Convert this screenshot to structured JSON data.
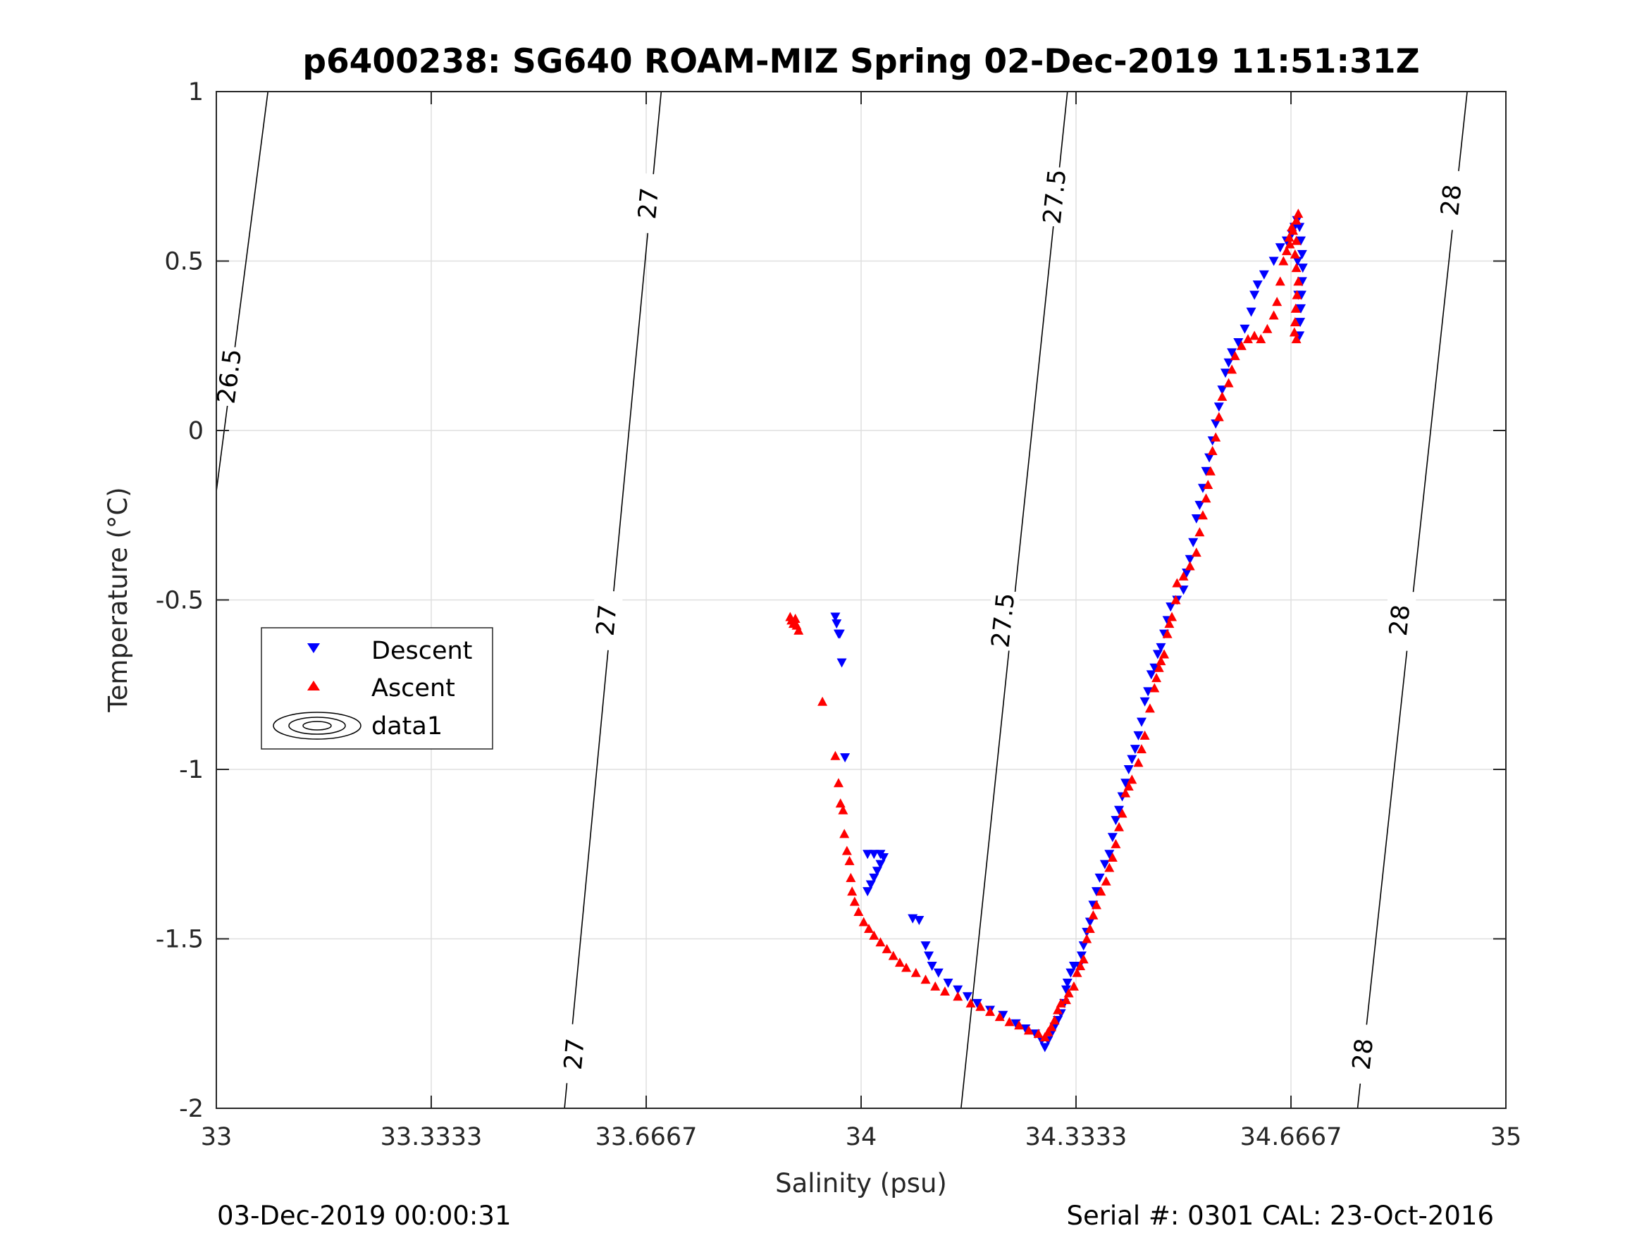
{
  "chart_data": {
    "type": "scatter",
    "title": "p6400238: SG640 ROAM-MIZ Spring 02-Dec-2019 11:51:31Z",
    "xlabel": "Salinity (psu)",
    "ylabel": "Temperature (°C)",
    "xlim": [
      33,
      35
    ],
    "ylim": [
      -2,
      1
    ],
    "xticks": [
      33,
      33.3333,
      33.6667,
      34,
      34.3333,
      34.6667,
      35
    ],
    "xtick_labels": [
      "33",
      "33.3333",
      "33.6667",
      "34",
      "34.3333",
      "34.6667",
      "35"
    ],
    "yticks": [
      -2,
      -1.5,
      -1,
      -0.5,
      0,
      0.5,
      1
    ],
    "ytick_labels": [
      "-2",
      "-1.5",
      "-1",
      "-0.5",
      "0",
      "0.5",
      "1"
    ],
    "grid": true,
    "legend": {
      "position": "middle-left",
      "entries": [
        "Descent",
        "Ascent",
        "data1"
      ]
    },
    "footer_left": "03-Dec-2019 00:00:31",
    "footer_right": "Serial #: 0301  CAL: 23-Oct-2016",
    "contours": [
      {
        "level": "26.5",
        "points": [
          [
            33.0,
            -0.18
          ],
          [
            33.08,
            1.0
          ]
        ],
        "labels": [
          [
            33.02,
            0.16
          ]
        ]
      },
      {
        "level": "27",
        "points": [
          [
            33.54,
            -2.0
          ],
          [
            33.69,
            1.0
          ]
        ],
        "labels": [
          [
            33.555,
            -1.84
          ],
          [
            33.605,
            -0.56
          ],
          [
            33.67,
            0.67
          ]
        ]
      },
      {
        "level": "27.5",
        "points": [
          [
            34.155,
            -2.0
          ],
          [
            34.32,
            1.0
          ]
        ],
        "labels": [
          [
            34.22,
            -0.56
          ],
          [
            34.3,
            0.69
          ]
        ]
      },
      {
        "level": "28",
        "points": [
          [
            34.77,
            -2.0
          ],
          [
            34.94,
            1.0
          ]
        ],
        "labels": [
          [
            34.778,
            -1.84
          ],
          [
            34.835,
            -0.56
          ],
          [
            34.915,
            0.68
          ]
        ]
      }
    ],
    "series": [
      {
        "name": "Descent",
        "marker": "triangle-down",
        "color": "#0000ff",
        "points": [
          [
            33.96,
            -0.55
          ],
          [
            33.962,
            -0.57
          ],
          [
            33.965,
            -0.6
          ],
          [
            33.967,
            -0.6
          ],
          [
            33.97,
            -0.685
          ],
          [
            33.975,
            -0.965
          ],
          [
            34.01,
            -1.25
          ],
          [
            34.02,
            -1.25
          ],
          [
            34.03,
            -1.25
          ],
          [
            34.035,
            -1.26
          ],
          [
            34.03,
            -1.28
          ],
          [
            34.025,
            -1.3
          ],
          [
            34.02,
            -1.32
          ],
          [
            34.015,
            -1.34
          ],
          [
            34.01,
            -1.36
          ],
          [
            34.08,
            -1.44
          ],
          [
            34.09,
            -1.445
          ],
          [
            34.1,
            -1.52
          ],
          [
            34.105,
            -1.55
          ],
          [
            34.11,
            -1.58
          ],
          [
            34.12,
            -1.6
          ],
          [
            34.135,
            -1.63
          ],
          [
            34.15,
            -1.65
          ],
          [
            34.165,
            -1.67
          ],
          [
            34.18,
            -1.69
          ],
          [
            34.2,
            -1.71
          ],
          [
            34.22,
            -1.725
          ],
          [
            34.24,
            -1.75
          ],
          [
            34.255,
            -1.765
          ],
          [
            34.27,
            -1.78
          ],
          [
            34.28,
            -1.8
          ],
          [
            34.285,
            -1.82
          ],
          [
            34.29,
            -1.8
          ],
          [
            34.295,
            -1.78
          ],
          [
            34.3,
            -1.76
          ],
          [
            34.305,
            -1.74
          ],
          [
            34.31,
            -1.72
          ],
          [
            34.315,
            -1.69
          ],
          [
            34.318,
            -1.65
          ],
          [
            34.32,
            -1.63
          ],
          [
            34.325,
            -1.6
          ],
          [
            34.33,
            -1.58
          ],
          [
            34.338,
            -1.58
          ],
          [
            34.342,
            -1.55
          ],
          [
            34.345,
            -1.52
          ],
          [
            34.35,
            -1.48
          ],
          [
            34.355,
            -1.45
          ],
          [
            34.36,
            -1.4
          ],
          [
            34.365,
            -1.36
          ],
          [
            34.37,
            -1.32
          ],
          [
            34.378,
            -1.28
          ],
          [
            34.385,
            -1.25
          ],
          [
            34.39,
            -1.2
          ],
          [
            34.395,
            -1.15
          ],
          [
            34.4,
            -1.12
          ],
          [
            34.405,
            -1.08
          ],
          [
            34.41,
            -1.04
          ],
          [
            34.415,
            -1.0
          ],
          [
            34.42,
            -0.97
          ],
          [
            34.425,
            -0.94
          ],
          [
            34.43,
            -0.9
          ],
          [
            34.435,
            -0.86
          ],
          [
            34.44,
            -0.8
          ],
          [
            34.445,
            -0.77
          ],
          [
            34.45,
            -0.72
          ],
          [
            34.455,
            -0.7
          ],
          [
            34.46,
            -0.66
          ],
          [
            34.465,
            -0.64
          ],
          [
            34.47,
            -0.6
          ],
          [
            34.475,
            -0.56
          ],
          [
            34.48,
            -0.52
          ],
          [
            34.49,
            -0.5
          ],
          [
            34.5,
            -0.47
          ],
          [
            34.505,
            -0.42
          ],
          [
            34.51,
            -0.38
          ],
          [
            34.515,
            -0.33
          ],
          [
            34.52,
            -0.26
          ],
          [
            34.525,
            -0.22
          ],
          [
            34.53,
            -0.17
          ],
          [
            34.535,
            -0.12
          ],
          [
            34.54,
            -0.08
          ],
          [
            34.545,
            -0.03
          ],
          [
            34.55,
            0.02
          ],
          [
            34.555,
            0.07
          ],
          [
            34.56,
            0.12
          ],
          [
            34.565,
            0.17
          ],
          [
            34.57,
            0.2
          ],
          [
            34.575,
            0.23
          ],
          [
            34.585,
            0.26
          ],
          [
            34.595,
            0.3
          ],
          [
            34.605,
            0.35
          ],
          [
            34.61,
            0.4
          ],
          [
            34.615,
            0.43
          ],
          [
            34.625,
            0.46
          ],
          [
            34.64,
            0.5
          ],
          [
            34.65,
            0.54
          ],
          [
            34.66,
            0.56
          ],
          [
            34.668,
            0.58
          ],
          [
            34.672,
            0.6
          ],
          [
            34.676,
            0.62
          ],
          [
            34.68,
            0.6
          ],
          [
            34.682,
            0.56
          ],
          [
            34.684,
            0.52
          ],
          [
            34.685,
            0.48
          ],
          [
            34.684,
            0.44
          ],
          [
            34.683,
            0.4
          ],
          [
            34.682,
            0.36
          ],
          [
            34.681,
            0.32
          ],
          [
            34.68,
            0.28
          ],
          [
            34.678,
            0.4
          ],
          [
            34.677,
            0.5
          ]
        ]
      },
      {
        "name": "Ascent",
        "marker": "triangle-up",
        "color": "#ff0000",
        "points": [
          [
            33.89,
            -0.55
          ],
          [
            33.892,
            -0.56
          ],
          [
            33.895,
            -0.57
          ],
          [
            33.898,
            -0.555
          ],
          [
            33.9,
            -0.575
          ],
          [
            33.903,
            -0.59
          ],
          [
            33.94,
            -0.8
          ],
          [
            33.96,
            -0.96
          ],
          [
            33.965,
            -1.04
          ],
          [
            33.968,
            -1.1
          ],
          [
            33.972,
            -1.12
          ],
          [
            33.974,
            -1.19
          ],
          [
            33.978,
            -1.24
          ],
          [
            33.982,
            -1.27
          ],
          [
            33.984,
            -1.32
          ],
          [
            33.986,
            -1.36
          ],
          [
            33.99,
            -1.39
          ],
          [
            33.996,
            -1.42
          ],
          [
            34.004,
            -1.45
          ],
          [
            34.012,
            -1.47
          ],
          [
            34.02,
            -1.49
          ],
          [
            34.03,
            -1.51
          ],
          [
            34.04,
            -1.53
          ],
          [
            34.05,
            -1.55
          ],
          [
            34.06,
            -1.57
          ],
          [
            34.07,
            -1.585
          ],
          [
            34.085,
            -1.6
          ],
          [
            34.1,
            -1.62
          ],
          [
            34.115,
            -1.64
          ],
          [
            34.13,
            -1.655
          ],
          [
            34.15,
            -1.67
          ],
          [
            34.17,
            -1.69
          ],
          [
            34.185,
            -1.7
          ],
          [
            34.2,
            -1.715
          ],
          [
            34.215,
            -1.73
          ],
          [
            34.23,
            -1.745
          ],
          [
            34.245,
            -1.755
          ],
          [
            34.26,
            -1.77
          ],
          [
            34.275,
            -1.78
          ],
          [
            34.285,
            -1.79
          ],
          [
            34.29,
            -1.775
          ],
          [
            34.295,
            -1.76
          ],
          [
            34.3,
            -1.74
          ],
          [
            34.305,
            -1.71
          ],
          [
            34.31,
            -1.69
          ],
          [
            34.318,
            -1.68
          ],
          [
            34.322,
            -1.66
          ],
          [
            34.33,
            -1.64
          ],
          [
            34.335,
            -1.6
          ],
          [
            34.34,
            -1.58
          ],
          [
            34.345,
            -1.56
          ],
          [
            34.35,
            -1.5
          ],
          [
            34.355,
            -1.47
          ],
          [
            34.36,
            -1.43
          ],
          [
            34.365,
            -1.4
          ],
          [
            34.372,
            -1.36
          ],
          [
            34.38,
            -1.33
          ],
          [
            34.385,
            -1.29
          ],
          [
            34.39,
            -1.26
          ],
          [
            34.395,
            -1.22
          ],
          [
            34.4,
            -1.17
          ],
          [
            34.405,
            -1.13
          ],
          [
            34.41,
            -1.07
          ],
          [
            34.415,
            -1.05
          ],
          [
            34.42,
            -1.03
          ],
          [
            34.43,
            -0.98
          ],
          [
            34.435,
            -0.94
          ],
          [
            34.44,
            -0.9
          ],
          [
            34.448,
            -0.82
          ],
          [
            34.455,
            -0.76
          ],
          [
            34.458,
            -0.73
          ],
          [
            34.462,
            -0.7
          ],
          [
            34.465,
            -0.68
          ],
          [
            34.47,
            -0.66
          ],
          [
            34.475,
            -0.6
          ],
          [
            34.478,
            -0.57
          ],
          [
            34.482,
            -0.55
          ],
          [
            34.488,
            -0.5
          ],
          [
            34.49,
            -0.45
          ],
          [
            34.5,
            -0.43
          ],
          [
            34.51,
            -0.4
          ],
          [
            34.52,
            -0.36
          ],
          [
            34.525,
            -0.3
          ],
          [
            34.53,
            -0.25
          ],
          [
            34.535,
            -0.2
          ],
          [
            34.538,
            -0.16
          ],
          [
            34.542,
            -0.12
          ],
          [
            34.545,
            -0.06
          ],
          [
            34.55,
            -0.02
          ],
          [
            34.555,
            0.04
          ],
          [
            34.56,
            0.1
          ],
          [
            34.57,
            0.14
          ],
          [
            34.575,
            0.18
          ],
          [
            34.58,
            0.22
          ],
          [
            34.59,
            0.25
          ],
          [
            34.6,
            0.27
          ],
          [
            34.61,
            0.28
          ],
          [
            34.62,
            0.27
          ],
          [
            34.63,
            0.3
          ],
          [
            34.64,
            0.34
          ],
          [
            34.645,
            0.38
          ],
          [
            34.65,
            0.44
          ],
          [
            34.655,
            0.5
          ],
          [
            34.66,
            0.53
          ],
          [
            34.665,
            0.55
          ],
          [
            34.67,
            0.59
          ],
          [
            34.675,
            0.62
          ],
          [
            34.678,
            0.64
          ],
          [
            34.675,
            0.56
          ],
          [
            34.673,
            0.52
          ],
          [
            34.675,
            0.48
          ],
          [
            34.678,
            0.44
          ],
          [
            34.676,
            0.4
          ],
          [
            34.674,
            0.36
          ],
          [
            34.673,
            0.32
          ],
          [
            34.672,
            0.29
          ],
          [
            34.675,
            0.27
          ],
          [
            34.668,
            0.6
          ],
          [
            34.664,
            0.57
          ]
        ]
      }
    ]
  }
}
